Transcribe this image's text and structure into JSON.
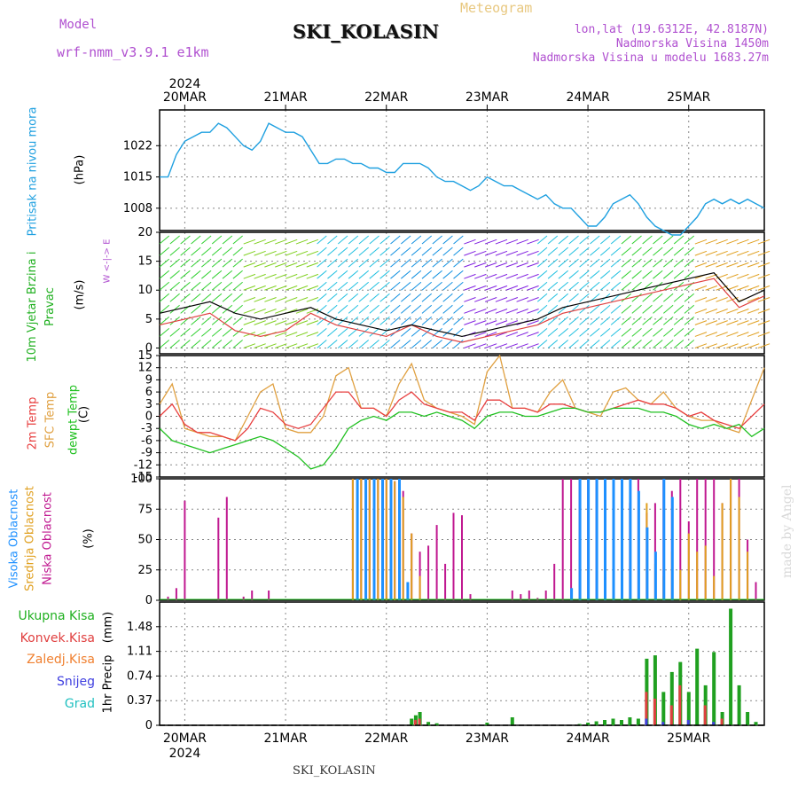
{
  "header": {
    "model_label": "Model",
    "model_name": "wrf-nmm_v3.9.1 e1km",
    "product": "Meteogram",
    "station": "SKI_KOLASIN",
    "lonlat": "lon,lat (19.6312E, 42.8187N)",
    "elevation": "Nadmorska Visina 1450m",
    "model_elevation": "Nadmorska Visina u modelu 1683.27m",
    "watermark": "made by Angel",
    "footer_station": "SKI_KOLASIN"
  },
  "time_axis": {
    "year": "2024",
    "days": [
      "20MAR",
      "21MAR",
      "22MAR",
      "23MAR",
      "24MAR",
      "25MAR"
    ],
    "start_hour_offset": -6,
    "span_hours": 144
  },
  "colors": {
    "pressure": "#1fa0e0",
    "wind_speed": "#000000",
    "gust": "#e04040",
    "temp2m": "#e84040",
    "sfc_temp": "#e0a040",
    "dewpoint": "#20c020",
    "high_cloud": "#1e90ff",
    "mid_cloud": "#e0a020",
    "low_cloud": "#c01890",
    "total_precip": "#20a020",
    "conv_precip": "#e04040",
    "frz_precip": "#f08030",
    "snow": "#4040e0",
    "graupel": "#20c0c0"
  },
  "chart_data": [
    {
      "type": "line",
      "id": "pressure",
      "ylabel": "Pritisak na nivou mora",
      "unit": "(hPa)",
      "ylim": [
        1003,
        1030
      ],
      "yticks": [
        1008,
        1015,
        1022
      ],
      "series": [
        {
          "x": [
            -6,
            -4,
            -2,
            0,
            2,
            4,
            6,
            8,
            10,
            12,
            14,
            16,
            18,
            20,
            22,
            24,
            26,
            28,
            30,
            32,
            34,
            36,
            38,
            40,
            42,
            44,
            46,
            48,
            50,
            52,
            54,
            56,
            58,
            60,
            62,
            64,
            66,
            68,
            70,
            72,
            74,
            76,
            78,
            80,
            82,
            84,
            86,
            88,
            90,
            92,
            94,
            96,
            98,
            100,
            102,
            104,
            106,
            108,
            110,
            112,
            114,
            116,
            118,
            120,
            122,
            124,
            126,
            128,
            130,
            132,
            134,
            136,
            138
          ],
          "values": [
            1015,
            1015,
            1020,
            1023,
            1024,
            1025,
            1025,
            1027,
            1026,
            1024,
            1022,
            1021,
            1023,
            1027,
            1026,
            1025,
            1025,
            1024,
            1021,
            1018,
            1018,
            1019,
            1019,
            1018,
            1018,
            1017,
            1017,
            1016,
            1016,
            1018,
            1018,
            1018,
            1017,
            1015,
            1014,
            1014,
            1013,
            1012,
            1013,
            1015,
            1014,
            1013,
            1013,
            1012,
            1011,
            1010,
            1011,
            1009,
            1008,
            1008,
            1006,
            1004,
            1004,
            1006,
            1009,
            1010,
            1011,
            1009,
            1006,
            1004,
            1003,
            1002,
            1002,
            1004,
            1006,
            1009,
            1010,
            1009,
            1010,
            1009,
            1010,
            1009,
            1008
          ]
        }
      ]
    },
    {
      "type": "line",
      "id": "wind",
      "ylabel": "10m Vjetar Brzina i Pravac",
      "unit": "(m/s)",
      "ylim": [
        -1,
        20
      ],
      "yticks": [
        0,
        5,
        10,
        15,
        20
      ],
      "compass": "W <-|-> E",
      "series": [
        {
          "name": "speed",
          "x": [
            -6,
            0,
            6,
            12,
            18,
            24,
            30,
            36,
            42,
            48,
            54,
            60,
            66,
            72,
            78,
            84,
            90,
            96,
            102,
            108,
            114,
            120,
            126,
            132,
            138
          ],
          "values": [
            6,
            7,
            8,
            6,
            5,
            6,
            7,
            5,
            4,
            3,
            4,
            3,
            2,
            3,
            4,
            5,
            7,
            8,
            9,
            10,
            11,
            12,
            13,
            8,
            10
          ]
        },
        {
          "name": "gust",
          "x": [
            -6,
            0,
            6,
            12,
            18,
            24,
            30,
            36,
            42,
            48,
            54,
            60,
            66,
            72,
            78,
            84,
            90,
            96,
            102,
            108,
            114,
            120,
            126,
            132,
            138
          ],
          "values": [
            4,
            5,
            6,
            3,
            2,
            3,
            6,
            4,
            3,
            2,
            4,
            2,
            1,
            2,
            3,
            4,
            6,
            7,
            8,
            9,
            10,
            11,
            12,
            7,
            9
          ]
        }
      ]
    },
    {
      "type": "line",
      "id": "temperature",
      "ylabel": "2m Temp",
      "ylabel2": "SFC Temp",
      "ylabel3": "dewpt Temp",
      "unit": "(C)",
      "ylim": [
        -15,
        15
      ],
      "yticks": [
        -15,
        -12,
        -9,
        -6,
        -3,
        0,
        3,
        6,
        9,
        12,
        15
      ],
      "series": [
        {
          "name": "2m Temp",
          "x": [
            -6,
            -3,
            0,
            3,
            6,
            9,
            12,
            15,
            18,
            21,
            24,
            27,
            30,
            33,
            36,
            39,
            42,
            45,
            48,
            51,
            54,
            57,
            60,
            63,
            66,
            69,
            72,
            75,
            78,
            81,
            84,
            87,
            90,
            93,
            96,
            99,
            102,
            105,
            108,
            111,
            114,
            117,
            120,
            123,
            126,
            129,
            132,
            135,
            138
          ],
          "values": [
            0,
            3,
            -2,
            -4,
            -4,
            -5,
            -6,
            -3,
            2,
            1,
            -2,
            -3,
            -2,
            2,
            6,
            6,
            2,
            2,
            0,
            4,
            6,
            3,
            2,
            1,
            1,
            -1,
            4,
            4,
            2,
            2,
            1,
            3,
            3,
            2,
            1,
            1,
            2,
            3,
            4,
            3,
            3,
            2,
            0,
            1,
            -1,
            -2,
            -3,
            0,
            3
          ]
        },
        {
          "name": "SFC Temp",
          "x": [
            -6,
            -3,
            0,
            3,
            6,
            9,
            12,
            15,
            18,
            21,
            24,
            27,
            30,
            33,
            36,
            39,
            42,
            45,
            48,
            51,
            54,
            57,
            60,
            63,
            66,
            69,
            72,
            75,
            78,
            81,
            84,
            87,
            90,
            93,
            96,
            99,
            102,
            105,
            108,
            111,
            114,
            117,
            120,
            123,
            126,
            129,
            132,
            135,
            138
          ],
          "values": [
            3,
            8,
            -3,
            -4,
            -5,
            -5,
            -6,
            0,
            6,
            8,
            -3,
            -4,
            -4,
            0,
            10,
            12,
            2,
            2,
            0,
            8,
            13,
            4,
            2,
            1,
            0,
            -2,
            11,
            15,
            2,
            2,
            1,
            6,
            9,
            2,
            1,
            0,
            6,
            7,
            4,
            3,
            6,
            2,
            0,
            -1,
            -1,
            -3,
            -4,
            4,
            12
          ]
        },
        {
          "name": "dewpt Temp",
          "x": [
            -6,
            -3,
            0,
            3,
            6,
            9,
            12,
            15,
            18,
            21,
            24,
            27,
            30,
            33,
            36,
            39,
            42,
            45,
            48,
            51,
            54,
            57,
            60,
            63,
            66,
            69,
            72,
            75,
            78,
            81,
            84,
            87,
            90,
            93,
            96,
            99,
            102,
            105,
            108,
            111,
            114,
            117,
            120,
            123,
            126,
            129,
            132,
            135,
            138
          ],
          "values": [
            -3,
            -6,
            -7,
            -8,
            -9,
            -8,
            -7,
            -6,
            -5,
            -6,
            -8,
            -10,
            -13,
            -12,
            -8,
            -3,
            -1,
            0,
            -1,
            1,
            1,
            0,
            1,
            0,
            -1,
            -3,
            0,
            1,
            1,
            0,
            0,
            1,
            2,
            2,
            1,
            1,
            2,
            2,
            2,
            1,
            1,
            0,
            -2,
            -3,
            -2,
            -3,
            -2,
            -5,
            -3
          ]
        }
      ]
    },
    {
      "type": "bar",
      "id": "cloud",
      "ylabel": "Visoka Oblacnost",
      "ylabel2": "Srednja Oblacnost",
      "ylabel3": "Niska Oblacnost",
      "unit": "(%)",
      "ylim": [
        0,
        100
      ],
      "yticks": [
        0,
        25,
        50,
        75,
        100
      ],
      "series": [
        {
          "name": "Niska Oblacnost",
          "x": [
            -4,
            -2,
            0,
            8,
            10,
            14,
            16,
            20,
            40,
            42,
            44,
            46,
            48,
            50,
            52,
            54,
            56,
            58,
            60,
            62,
            64,
            66,
            68,
            78,
            80,
            82,
            84,
            86,
            88,
            90,
            92,
            94,
            96,
            98,
            100,
            102,
            104,
            106,
            108,
            110,
            112,
            114,
            116,
            118,
            120,
            122,
            124,
            126,
            128,
            130,
            132,
            134,
            136
          ],
          "values": [
            3,
            10,
            82,
            68,
            85,
            3,
            8,
            8,
            100,
            100,
            100,
            100,
            100,
            98,
            90,
            55,
            40,
            45,
            62,
            30,
            72,
            70,
            5,
            8,
            5,
            8,
            2,
            8,
            30,
            100,
            100,
            100,
            100,
            100,
            100,
            92,
            100,
            80,
            100,
            72,
            80,
            100,
            90,
            100,
            65,
            100,
            100,
            100,
            80,
            100,
            100,
            50,
            15
          ]
        },
        {
          "name": "Srednja Oblacnost",
          "x": [
            40,
            42,
            44,
            46,
            48,
            50,
            52,
            54,
            56,
            110,
            112,
            114,
            116,
            118,
            120,
            122,
            124,
            126,
            128,
            130,
            132,
            134
          ],
          "values": [
            100,
            100,
            100,
            100,
            100,
            98,
            85,
            55,
            20,
            80,
            30,
            20,
            40,
            25,
            55,
            40,
            45,
            20,
            80,
            100,
            85,
            40
          ]
        },
        {
          "name": "Visoka Oblacnost",
          "x": [
            41,
            43,
            45,
            47,
            49,
            51,
            53,
            92,
            94,
            96,
            98,
            100,
            102,
            104,
            106,
            108,
            110,
            112,
            114,
            116
          ],
          "values": [
            100,
            100,
            100,
            100,
            100,
            100,
            15,
            10,
            100,
            100,
            100,
            100,
            100,
            100,
            100,
            90,
            60,
            40,
            100,
            85
          ]
        }
      ]
    },
    {
      "type": "bar",
      "id": "precip",
      "ylabel": "1hr Precip",
      "unit": "(mm)",
      "ylim": [
        0,
        1.85
      ],
      "yticks": [
        0,
        0.37,
        0.74,
        1.11,
        1.48
      ],
      "legend": [
        "Ukupna Kisa",
        "Konvek.Kisa",
        "Zaledj.Kisa",
        "Snijeg",
        "Grad"
      ],
      "series": [
        {
          "name": "Ukupna Kisa",
          "x": [
            54,
            55,
            56,
            58,
            60,
            72,
            78,
            94,
            96,
            98,
            100,
            102,
            104,
            106,
            108,
            110,
            112,
            114,
            116,
            118,
            120,
            122,
            124,
            126,
            128,
            130,
            132,
            134,
            136
          ],
          "values": [
            0.1,
            0.15,
            0.2,
            0.05,
            0.03,
            0.04,
            0.12,
            0.02,
            0.04,
            0.06,
            0.08,
            0.1,
            0.08,
            0.12,
            0.1,
            1.0,
            1.05,
            0.5,
            0.8,
            0.95,
            0.5,
            1.15,
            0.6,
            1.1,
            0.2,
            1.75,
            0.6,
            0.2,
            0.05
          ]
        },
        {
          "name": "Konvek.Kisa",
          "x": [
            55,
            56,
            110,
            112,
            116,
            118,
            124,
            128
          ],
          "values": [
            0.08,
            0.1,
            0.5,
            0.4,
            0.3,
            0.6,
            0.3,
            0.1
          ]
        },
        {
          "name": "Snijeg",
          "x": [
            110,
            114,
            120,
            126
          ],
          "values": [
            0.1,
            0.05,
            0.08,
            0.05
          ]
        }
      ]
    }
  ]
}
